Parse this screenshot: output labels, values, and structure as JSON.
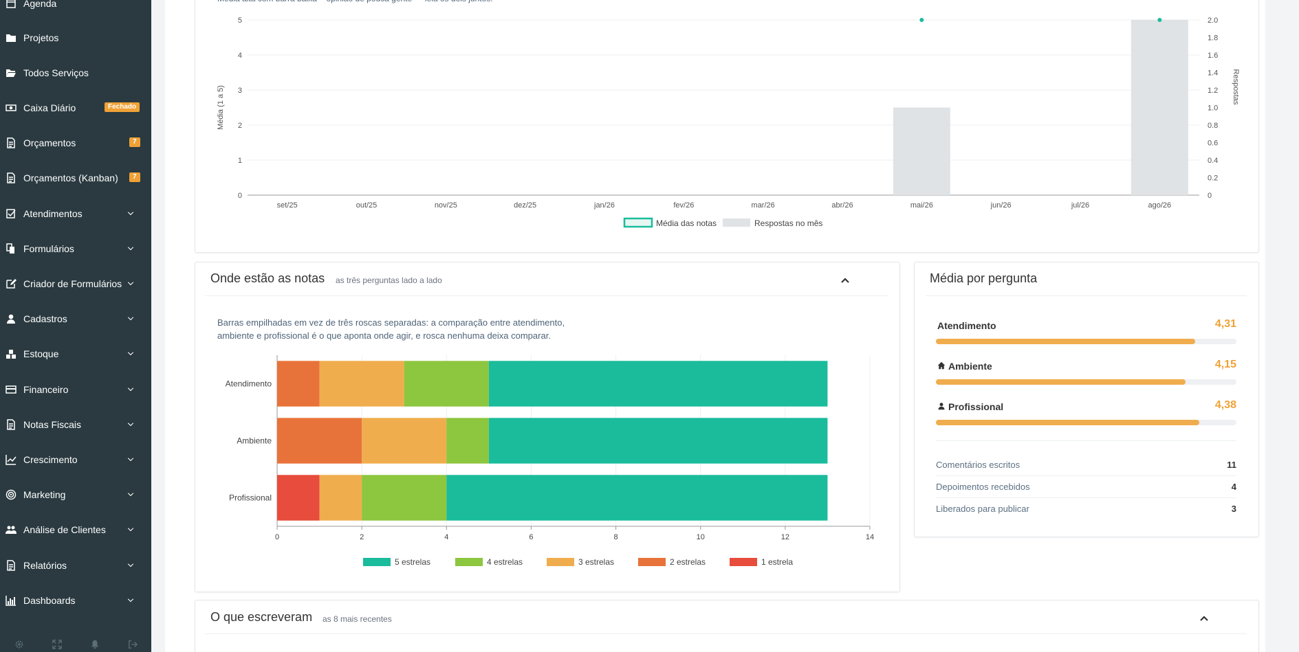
{
  "sidebar": {
    "items": [
      {
        "label": "Agenda",
        "icon": "calendar-icon",
        "chevron": false,
        "badge": ""
      },
      {
        "label": "Projetos",
        "icon": "folder-icon",
        "chevron": false,
        "badge": ""
      },
      {
        "label": "Todos Serviços",
        "icon": "folder-open-icon",
        "chevron": false,
        "badge": ""
      },
      {
        "label": "Caixa Diário",
        "icon": "money-icon",
        "chevron": false,
        "badge": "Fechado"
      },
      {
        "label": "Orçamentos",
        "icon": "file-icon",
        "chevron": false,
        "badge": "7"
      },
      {
        "label": "Orçamentos (Kanban)",
        "icon": "file-icon",
        "chevron": false,
        "badge": "7"
      },
      {
        "label": "Atendimentos",
        "icon": "check-square-icon",
        "chevron": true,
        "badge": ""
      },
      {
        "label": "Formulários",
        "icon": "copy-icon",
        "chevron": true,
        "badge": ""
      },
      {
        "label": "Criador de Formulários",
        "icon": "edit-icon",
        "chevron": true,
        "badge": ""
      },
      {
        "label": "Cadastros",
        "icon": "user-icon",
        "chevron": true,
        "badge": ""
      },
      {
        "label": "Estoque",
        "icon": "cubes-icon",
        "chevron": true,
        "badge": ""
      },
      {
        "label": "Financeiro",
        "icon": "credit-card-icon",
        "chevron": true,
        "badge": ""
      },
      {
        "label": "Notas Fiscais",
        "icon": "file-text-icon",
        "chevron": true,
        "badge": ""
      },
      {
        "label": "Crescimento",
        "icon": "line-chart-icon",
        "chevron": true,
        "badge": ""
      },
      {
        "label": "Marketing",
        "icon": "bullseye-icon",
        "chevron": true,
        "badge": ""
      },
      {
        "label": "Análise de Clientes",
        "icon": "users-icon",
        "chevron": true,
        "badge": ""
      },
      {
        "label": "Relatórios",
        "icon": "file-text-icon",
        "chevron": true,
        "badge": ""
      },
      {
        "label": "Dashboards",
        "icon": "bar-chart-icon",
        "chevron": true,
        "badge": ""
      }
    ],
    "footer_icons": [
      "gear-icon",
      "expand-icon",
      "bell-icon",
      "sign-out-icon"
    ]
  },
  "monthly_panel": {
    "subtitle_partial": "Média alta com barra baixa = opinião de pouca gente — leia os dois juntos."
  },
  "notes_panel": {
    "title": "Onde estão as notas",
    "subtitle": "as três perguntas lado a lado",
    "description_line1": "Barras empilhadas em vez de três roscas separadas: a comparação entre atendimento,",
    "description_line2": "ambiente e profissional é o que aponta onde agir, e rosca nenhuma deixa comparar."
  },
  "media_panel": {
    "title": "Média por pergunta",
    "questions": [
      {
        "label": "Atendimento",
        "icon": "",
        "value": "4,31",
        "fraction": 0.862
      },
      {
        "label": "Ambiente",
        "icon": "home-icon",
        "value": "4,15",
        "fraction": 0.83
      },
      {
        "label": "Profissional",
        "icon": "user-icon",
        "value": "4,38",
        "fraction": 0.876
      }
    ],
    "stats": [
      {
        "label": "Comentários escritos",
        "value": "11"
      },
      {
        "label": "Depoimentos recebidos",
        "value": "4"
      },
      {
        "label": "Liberados para publicar",
        "value": "3"
      }
    ]
  },
  "comments_panel": {
    "title": "O que escreveram",
    "subtitle": "as 8 mais recentes"
  },
  "colors": {
    "teal": "#1abc9c",
    "bar_gray": "#e0e3e6",
    "orange": "#f0ad4e",
    "green": "#8dc63f",
    "dark_orange": "#e8733a",
    "red": "#e74c3c",
    "sidebar": "#2a3a40"
  },
  "chart_data": [
    {
      "type": "bar",
      "categories": [
        "set/25",
        "out/25",
        "nov/25",
        "dez/25",
        "jan/26",
        "fev/26",
        "mar/26",
        "abr/26",
        "mai/26",
        "jun/26",
        "jul/26",
        "ago/26"
      ],
      "series": [
        {
          "name": "Média das notas",
          "type": "line",
          "axis": "left",
          "values": [
            null,
            null,
            null,
            null,
            null,
            null,
            null,
            null,
            5,
            null,
            null,
            5
          ]
        },
        {
          "name": "Respostas no mês",
          "type": "bar",
          "axis": "right",
          "values": [
            0,
            0,
            0,
            0,
            0,
            0,
            0,
            0,
            1,
            0,
            0,
            2
          ]
        }
      ],
      "ylabel": "Média (1 a 5)",
      "ylim": [
        0,
        5
      ],
      "yticks": [
        "0",
        "1",
        "2",
        "3",
        "4",
        "5"
      ],
      "y2label": "Respostas",
      "y2lim": [
        0,
        2
      ],
      "y2ticks": [
        "0",
        "0.2",
        "0.4",
        "0.6",
        "0.8",
        "1.0",
        "1.2",
        "1.4",
        "1.6",
        "1.8",
        "2.0"
      ],
      "grid": true,
      "legend": "bottom"
    },
    {
      "type": "bar",
      "orientation": "horizontal",
      "stacked": true,
      "categories": [
        "Atendimento",
        "Ambiente",
        "Profissional"
      ],
      "series": [
        {
          "name": "2 estrelas",
          "values": [
            1,
            2,
            0
          ]
        },
        {
          "name": "1 estrela",
          "values": [
            0,
            0,
            1
          ]
        },
        {
          "name": "3 estrelas",
          "values": [
            2,
            2,
            1
          ]
        },
        {
          "name": "4 estrelas",
          "values": [
            2,
            1,
            2
          ]
        },
        {
          "name": "5 estrelas",
          "values": [
            8,
            8,
            9
          ]
        }
      ],
      "legend_order": [
        "5 estrelas",
        "4 estrelas",
        "3 estrelas",
        "2 estrelas",
        "1 estrela"
      ],
      "xlim": [
        0,
        14
      ],
      "xticks": [
        "0",
        "2",
        "4",
        "6",
        "8",
        "10",
        "12",
        "14"
      ],
      "grid": true,
      "legend": "bottom"
    }
  ]
}
